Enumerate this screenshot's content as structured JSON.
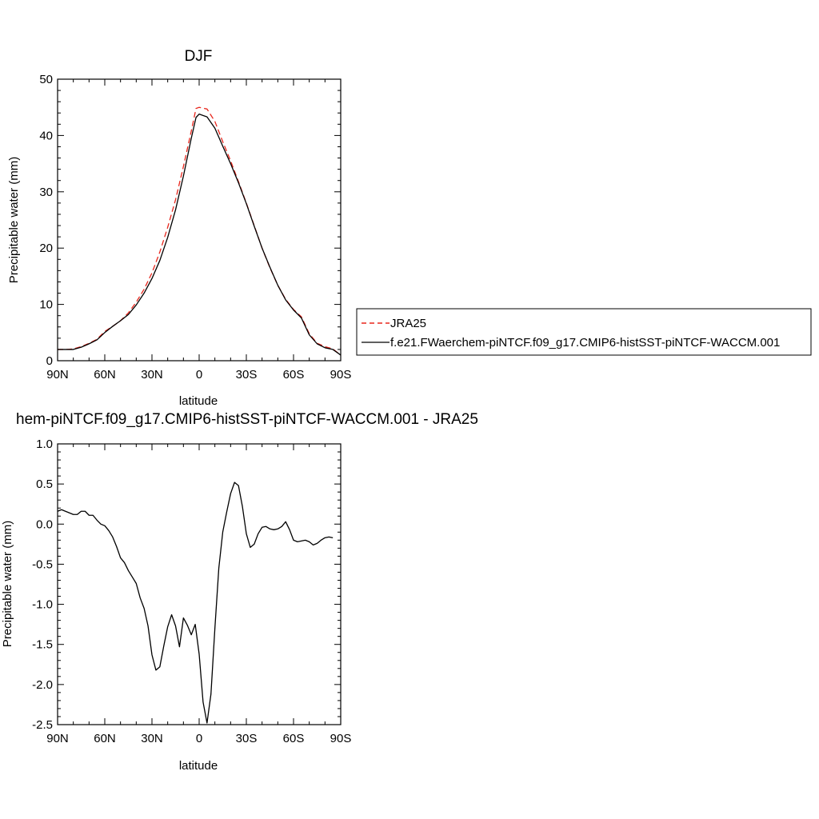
{
  "chart_data": [
    {
      "type": "line",
      "title": "DJF",
      "xlabel": "latitude",
      "ylabel": "Precipitable water (mm)",
      "xlim": [
        90,
        -90
      ],
      "ylim": [
        0,
        50
      ],
      "x_ticks": [
        90,
        60,
        30,
        0,
        -30,
        -60,
        -90
      ],
      "x_tick_labels": [
        "90N",
        "60N",
        "30N",
        "0",
        "30S",
        "60S",
        "90S"
      ],
      "y_ticks": [
        0,
        10,
        20,
        30,
        40,
        50
      ],
      "y_tick_labels": [
        "0",
        "10",
        "20",
        "30",
        "40",
        "50"
      ],
      "legend_position": "right",
      "series": [
        {
          "name": "JRA25",
          "color": "#e8261c",
          "dash": "dashed",
          "points": [
            [
              90,
              2.0
            ],
            [
              85,
              2.0
            ],
            [
              80,
              2.1
            ],
            [
              75,
              2.5
            ],
            [
              70,
              3.1
            ],
            [
              65,
              3.8
            ],
            [
              60,
              5.2
            ],
            [
              55,
              6.1
            ],
            [
              50,
              7.1
            ],
            [
              45,
              8.5
            ],
            [
              40,
              10.4
            ],
            [
              35,
              12.7
            ],
            [
              30,
              15.6
            ],
            [
              25,
              19.3
            ],
            [
              20,
              23.7
            ],
            [
              15,
              28.6
            ],
            [
              10,
              34.5
            ],
            [
              5,
              40.8
            ],
            [
              2,
              44.8
            ],
            [
              0,
              45.0
            ],
            [
              -5,
              44.7
            ],
            [
              -10,
              42.5
            ],
            [
              -15,
              38.9
            ],
            [
              -20,
              35.5
            ],
            [
              -25,
              31.8
            ],
            [
              -30,
              28.0
            ],
            [
              -35,
              24.0
            ],
            [
              -40,
              20.0
            ],
            [
              -45,
              16.5
            ],
            [
              -50,
              13.4
            ],
            [
              -55,
              10.9
            ],
            [
              -60,
              9.1
            ],
            [
              -65,
              7.8
            ],
            [
              -70,
              4.8
            ],
            [
              -75,
              3.1
            ],
            [
              -80,
              2.5
            ],
            [
              -85,
              2.1
            ],
            [
              -90,
              1.0
            ]
          ]
        },
        {
          "name": "f.e21.FWaerchem-piNTCF.f09_g17.CMIP6-histSST-piNTCF-WACCM.001",
          "color": "#000000",
          "dash": "solid",
          "points": [
            [
              90,
              2.0
            ],
            [
              85,
              2.0
            ],
            [
              80,
              2.0
            ],
            [
              75,
              2.4
            ],
            [
              70,
              3.0
            ],
            [
              65,
              3.7
            ],
            [
              60,
              5.0
            ],
            [
              55,
              6.1
            ],
            [
              50,
              7.1
            ],
            [
              45,
              8.2
            ],
            [
              40,
              9.9
            ],
            [
              35,
              12.0
            ],
            [
              30,
              14.6
            ],
            [
              25,
              17.8
            ],
            [
              20,
              21.9
            ],
            [
              15,
              26.8
            ],
            [
              10,
              32.8
            ],
            [
              5,
              39.5
            ],
            [
              2,
              43.2
            ],
            [
              0,
              43.8
            ],
            [
              -5,
              43.3
            ],
            [
              -10,
              41.3
            ],
            [
              -15,
              38.1
            ],
            [
              -20,
              35.0
            ],
            [
              -25,
              31.6
            ],
            [
              -30,
              27.9
            ],
            [
              -35,
              23.9
            ],
            [
              -40,
              20.0
            ],
            [
              -45,
              16.6
            ],
            [
              -50,
              13.4
            ],
            [
              -55,
              10.8
            ],
            [
              -60,
              9.0
            ],
            [
              -65,
              7.6
            ],
            [
              -70,
              4.6
            ],
            [
              -75,
              3.0
            ],
            [
              -80,
              2.3
            ],
            [
              -85,
              2.0
            ],
            [
              -90,
              1.0
            ]
          ]
        }
      ]
    },
    {
      "type": "line",
      "title": "hem-piNTCF.f09_g17.CMIP6-histSST-piNTCF-WACCM.001 - JRA25",
      "xlabel": "latitude",
      "ylabel": "Precipitable water (mm)",
      "xlim": [
        90,
        -90
      ],
      "ylim": [
        -2.5,
        1.0
      ],
      "x_ticks": [
        90,
        60,
        30,
        0,
        -30,
        -60,
        -90
      ],
      "x_tick_labels": [
        "90N",
        "60N",
        "30N",
        "0",
        "30S",
        "60S",
        "90S"
      ],
      "y_ticks": [
        1.0,
        0.5,
        0.0,
        -0.5,
        -1.0,
        -1.5,
        -2.0,
        -2.5
      ],
      "y_tick_labels": [
        "1.0",
        "0.5",
        "0.0",
        "-0.5",
        "-1.0",
        "-1.5",
        "-2.0",
        "-2.5"
      ],
      "series": [
        {
          "color": "#000000",
          "dash": "solid",
          "points": [
            [
              90,
              0.16
            ],
            [
              87.5,
              0.18
            ],
            [
              85,
              0.16
            ],
            [
              82.5,
              0.14
            ],
            [
              80,
              0.12
            ],
            [
              77.5,
              0.12
            ],
            [
              75,
              0.16
            ],
            [
              72.5,
              0.16
            ],
            [
              70,
              0.11
            ],
            [
              67.5,
              0.11
            ],
            [
              65,
              0.05
            ],
            [
              62.5,
              0.0
            ],
            [
              60,
              -0.02
            ],
            [
              57.5,
              -0.08
            ],
            [
              55,
              -0.16
            ],
            [
              52.5,
              -0.28
            ],
            [
              50,
              -0.42
            ],
            [
              47.5,
              -0.48
            ],
            [
              45,
              -0.58
            ],
            [
              42.5,
              -0.66
            ],
            [
              40,
              -0.74
            ],
            [
              37.5,
              -0.92
            ],
            [
              35,
              -1.05
            ],
            [
              32.5,
              -1.27
            ],
            [
              30,
              -1.63
            ],
            [
              27.5,
              -1.82
            ],
            [
              25,
              -1.78
            ],
            [
              22.5,
              -1.52
            ],
            [
              20,
              -1.28
            ],
            [
              17.5,
              -1.13
            ],
            [
              15,
              -1.27
            ],
            [
              12.5,
              -1.53
            ],
            [
              10,
              -1.17
            ],
            [
              7.5,
              -1.26
            ],
            [
              5,
              -1.38
            ],
            [
              2.5,
              -1.25
            ],
            [
              0,
              -1.62
            ],
            [
              -2.5,
              -2.22
            ],
            [
              -5,
              -2.48
            ],
            [
              -7.5,
              -2.12
            ],
            [
              -10,
              -1.3
            ],
            [
              -12.5,
              -0.55
            ],
            [
              -15,
              -0.1
            ],
            [
              -17.5,
              0.15
            ],
            [
              -20,
              0.38
            ],
            [
              -22.5,
              0.52
            ],
            [
              -25,
              0.48
            ],
            [
              -27.5,
              0.22
            ],
            [
              -30,
              -0.12
            ],
            [
              -32.5,
              -0.29
            ],
            [
              -35,
              -0.25
            ],
            [
              -37.5,
              -0.12
            ],
            [
              -40,
              -0.04
            ],
            [
              -42.5,
              -0.03
            ],
            [
              -45,
              -0.06
            ],
            [
              -47.5,
              -0.07
            ],
            [
              -50,
              -0.06
            ],
            [
              -52.5,
              -0.03
            ],
            [
              -55,
              0.03
            ],
            [
              -57.5,
              -0.07
            ],
            [
              -60,
              -0.2
            ],
            [
              -62.5,
              -0.22
            ],
            [
              -65,
              -0.21
            ],
            [
              -67.5,
              -0.2
            ],
            [
              -70,
              -0.22
            ],
            [
              -72.5,
              -0.26
            ],
            [
              -75,
              -0.24
            ],
            [
              -77.5,
              -0.2
            ],
            [
              -80,
              -0.17
            ],
            [
              -82.5,
              -0.16
            ],
            [
              -85,
              -0.17
            ]
          ]
        }
      ]
    }
  ]
}
